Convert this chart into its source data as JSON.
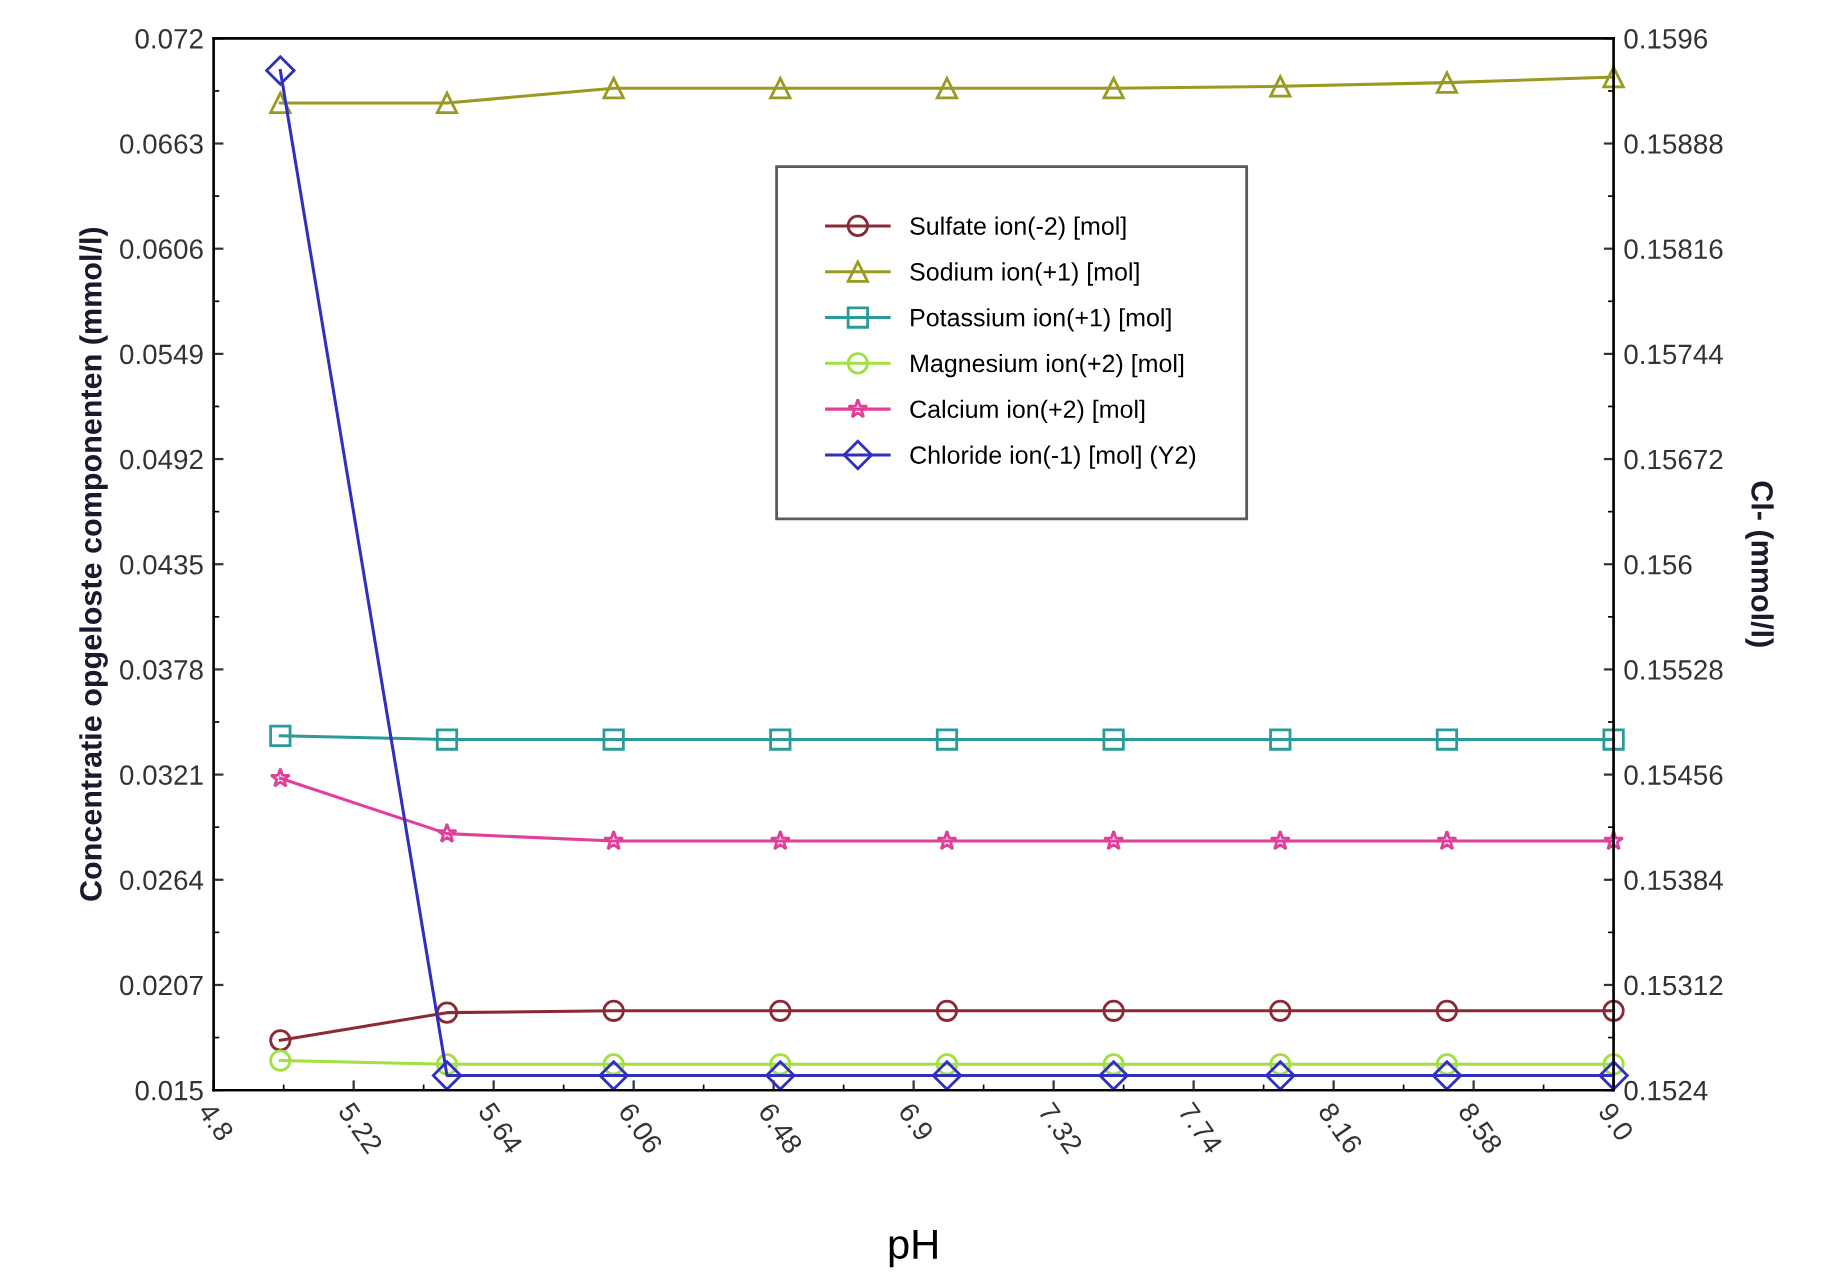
{
  "chart_data": {
    "type": "line",
    "xlabel": "pH",
    "ylabel": "Concentratie opgeloste componenten (mmol/l)",
    "y2label": "Cl- (mmol/l)",
    "x": [
      5.0,
      5.5,
      6.0,
      6.5,
      7.0,
      7.5,
      8.0,
      8.5,
      9.0
    ],
    "xlim": [
      4.8,
      9.0
    ],
    "xticks": [
      4.8,
      5.22,
      5.64,
      6.06,
      6.48,
      6.9,
      7.32,
      7.74,
      8.16,
      8.58,
      {
        "value": 9.0,
        "label": "9.0"
      }
    ],
    "ylim": [
      0.015,
      0.072
    ],
    "yticks": [
      0.015,
      0.0207,
      0.0264,
      0.0321,
      0.0378,
      0.0435,
      0.0492,
      0.0549,
      0.0606,
      0.0663,
      0.072
    ],
    "y2lim": [
      0.1524,
      0.1596
    ],
    "y2ticks": [
      0.1524,
      0.15312,
      0.15384,
      0.15456,
      0.15528,
      0.156,
      0.15672,
      0.15744,
      0.15816,
      0.15888,
      0.1596
    ],
    "grid": false,
    "legend": "top",
    "line_style": "solid",
    "series": [
      {
        "name": "Sulfate ion(-2) [mol]",
        "color": "#8b2a35",
        "marker": "circle",
        "values": [
          0.0177,
          0.0192,
          0.0193,
          0.0193,
          0.0193,
          0.0193,
          0.0193,
          0.0193,
          0.0193
        ]
      },
      {
        "name": "Sodium ion(+1) [mol]",
        "color": "#9a9a20",
        "marker": "triangle",
        "values": [
          0.0685,
          0.0685,
          0.0693,
          0.0693,
          0.0693,
          0.0693,
          0.0694,
          0.0696,
          0.0699
        ]
      },
      {
        "name": "Potassium ion(+1) [mol]",
        "color": "#2a9a9a",
        "marker": "square",
        "values": [
          0.0342,
          0.034,
          0.034,
          0.034,
          0.034,
          0.034,
          0.034,
          0.034,
          0.034
        ]
      },
      {
        "name": "Magnesium ion(+2) [mol]",
        "color": "#a0e040",
        "marker": "circle",
        "values": [
          0.0166,
          0.0164,
          0.0164,
          0.0164,
          0.0164,
          0.0164,
          0.0164,
          0.0164,
          0.0164
        ]
      },
      {
        "name": "Calcium ion(+2) [mol]",
        "color": "#e0409a",
        "marker": "star",
        "values": [
          0.0319,
          0.0289,
          0.0285,
          0.0285,
          0.0285,
          0.0285,
          0.0285,
          0.0285,
          0.0285
        ]
      },
      {
        "name": "Chloride ion(-1) [mol] (Y2)",
        "color": "#3030c0",
        "marker": "diamond",
        "axis": "y2",
        "values": [
          0.15938,
          0.1525,
          0.1525,
          0.1525,
          0.1525,
          0.1525,
          0.1525,
          0.1525,
          0.1525
        ]
      }
    ]
  }
}
